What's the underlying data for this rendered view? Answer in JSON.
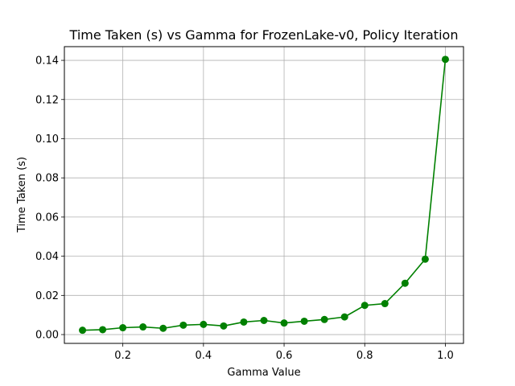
{
  "chart_data": {
    "type": "line",
    "title": "Time Taken (s) vs Gamma for FrozenLake-v0, Policy Iteration",
    "xlabel": "Gamma Value",
    "ylabel": "Time Taken (s)",
    "xlim": [
      0.055,
      1.045
    ],
    "ylim": [
      -0.0045,
      0.147
    ],
    "x_ticks": [
      "0.2",
      "0.4",
      "0.6",
      "0.8",
      "1.0"
    ],
    "y_ticks": [
      "0.00",
      "0.02",
      "0.04",
      "0.06",
      "0.08",
      "0.10",
      "0.12",
      "0.14"
    ],
    "grid": true,
    "legend": "none",
    "color": "#008000",
    "marker": "circle",
    "series": [
      {
        "x": [
          0.1,
          0.15,
          0.2,
          0.25,
          0.3,
          0.35,
          0.4,
          0.45,
          0.5,
          0.55,
          0.6,
          0.65,
          0.7,
          0.75,
          0.8,
          0.85,
          0.9,
          0.95,
          1.0
        ],
        "y": [
          0.0022,
          0.0025,
          0.0035,
          0.0039,
          0.0032,
          0.0048,
          0.0052,
          0.0044,
          0.0064,
          0.0072,
          0.0059,
          0.0068,
          0.0077,
          0.009,
          0.0149,
          0.0158,
          0.0262,
          0.0385,
          0.1405
        ]
      }
    ]
  }
}
